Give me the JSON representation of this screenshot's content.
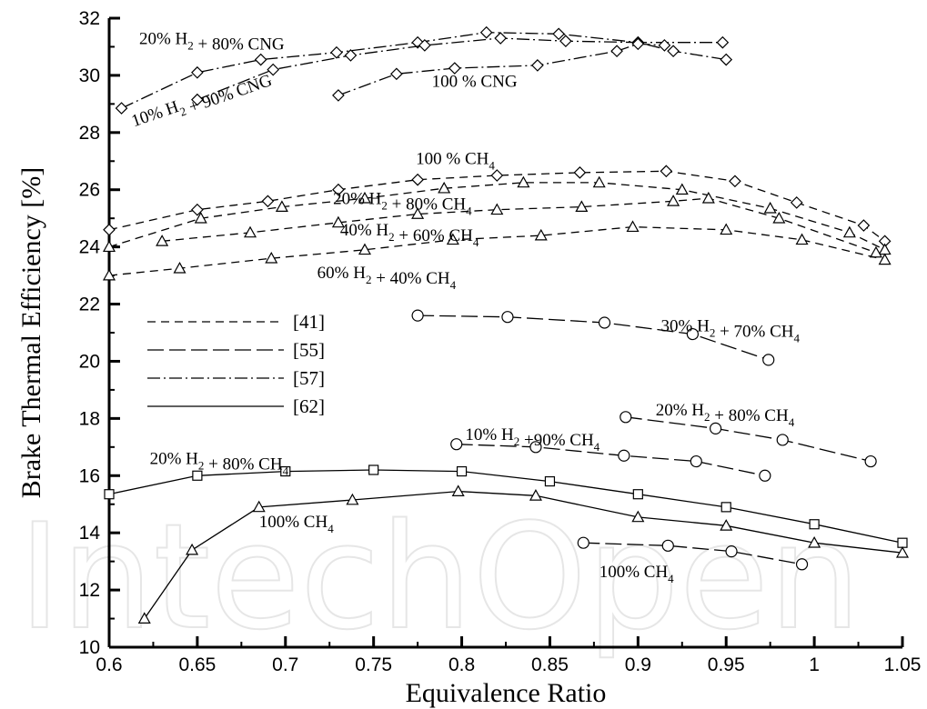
{
  "chart_data": {
    "type": "line",
    "title": "",
    "xlabel": "Equivalence Ratio",
    "ylabel": "Brake Thermal Efficiency [%]",
    "xlim": [
      0.6,
      1.05
    ],
    "ylim": [
      10,
      32
    ],
    "x_ticks": [
      "0.6",
      "0.65",
      "0.7",
      "0.75",
      "0.8",
      "0.85",
      "0.9",
      "0.95",
      "1",
      "1.05"
    ],
    "y_ticks": [
      "10",
      "12",
      "14",
      "16",
      "18",
      "20",
      "22",
      "24",
      "26",
      "28",
      "30",
      "32"
    ],
    "grid": false,
    "watermark": "IntechOpen",
    "legend": {
      "placement": "center-left",
      "entries": [
        {
          "label": "[41]",
          "style": "dash-short"
        },
        {
          "label": "[55]",
          "style": "dash-long"
        },
        {
          "label": "[57]",
          "style": "dash-dot"
        },
        {
          "label": "[62]",
          "style": "solid"
        }
      ]
    },
    "annotations": [
      {
        "base": "20% H",
        "sub1": "2",
        "mid": " + 80% CNG",
        "sub2": "",
        "x": 0.617,
        "y": 31.1
      },
      {
        "base": "100 % CNG",
        "sub1": "",
        "mid": "",
        "sub2": "",
        "x": 0.783,
        "y": 29.6
      },
      {
        "base": "100 % CH",
        "sub1": "",
        "mid": "",
        "sub2": "4",
        "x": 0.774,
        "y": 26.9
      },
      {
        "base": "20% H",
        "sub1": "2",
        "mid": " + 80% CH",
        "sub2": "4",
        "x": 0.727,
        "y": 25.5
      },
      {
        "base": "40% H",
        "sub1": "2",
        "mid": " + 60% CH",
        "sub2": "4",
        "x": 0.731,
        "y": 24.4
      },
      {
        "base": "60% H",
        "sub1": "2",
        "mid": " + 40% CH",
        "sub2": "4",
        "x": 0.718,
        "y": 22.9
      },
      {
        "base": "30% H",
        "sub1": "2",
        "mid": " + 70% CH",
        "sub2": "4",
        "x": 0.913,
        "y": 21.05
      },
      {
        "base": "20% H",
        "sub1": "2",
        "mid": " + 80% CH",
        "sub2": "4",
        "x": 0.91,
        "y": 18.1
      },
      {
        "base": "10% H",
        "sub1": "2",
        "mid": " +90% CH",
        "sub2": "4",
        "x": 0.802,
        "y": 17.25
      },
      {
        "base": "20% H",
        "sub1": "2",
        "mid": " + 80% CH",
        "sub2": "4",
        "x": 0.623,
        "y": 16.4
      },
      {
        "base": "100% CH",
        "sub1": "",
        "mid": "",
        "sub2": "4",
        "x": 0.685,
        "y": 14.2
      },
      {
        "base": "100% CH",
        "sub1": "",
        "mid": "",
        "sub2": "4",
        "x": 0.878,
        "y": 12.45
      }
    ],
    "rotated_annotations": [
      {
        "base": "10% H",
        "sub1": "2",
        "mid": " + 90% CNG",
        "x": 0.614,
        "y": 28.2,
        "angle": -19
      }
    ],
    "series": [
      {
        "ref": "[57]",
        "style": "dash-dot",
        "marker": "diamond",
        "x": [
          0.607,
          0.65,
          0.686,
          0.729,
          0.775,
          0.814,
          0.855,
          0.9,
          0.948
        ],
        "y": [
          28.85,
          30.1,
          30.55,
          30.8,
          31.15,
          31.5,
          31.45,
          31.15,
          31.15
        ]
      },
      {
        "ref": "[57]",
        "style": "dash-dot",
        "marker": "diamond",
        "x": [
          0.65,
          0.693,
          0.737,
          0.779,
          0.822,
          0.859,
          0.9,
          0.92,
          0.95
        ],
        "y": [
          29.15,
          30.2,
          30.7,
          31.05,
          31.3,
          31.2,
          31.15,
          30.85,
          30.55
        ]
      },
      {
        "ref": "[57]",
        "style": "dash-dot",
        "marker": "diamond",
        "x": [
          0.73,
          0.763,
          0.796,
          0.843,
          0.888,
          0.9,
          0.915
        ],
        "y": [
          29.3,
          30.05,
          30.25,
          30.35,
          30.85,
          31.1,
          31.05
        ]
      },
      {
        "ref": "[41]",
        "style": "dash-short",
        "marker": "diamond",
        "x": [
          0.6,
          0.65,
          0.69,
          0.73,
          0.775,
          0.82,
          0.867,
          0.916,
          0.955,
          0.99,
          1.028,
          1.04
        ],
        "y": [
          24.6,
          25.3,
          25.6,
          26.0,
          26.35,
          26.5,
          26.6,
          26.65,
          26.3,
          25.55,
          24.75,
          24.2
        ]
      },
      {
        "ref": "[41]",
        "style": "dash-short",
        "marker": "triangle",
        "x": [
          0.6,
          0.652,
          0.698,
          0.745,
          0.79,
          0.835,
          0.878,
          0.925,
          0.975,
          1.02,
          1.04
        ],
        "y": [
          24.0,
          25.0,
          25.4,
          25.7,
          26.05,
          26.25,
          26.25,
          26.0,
          25.35,
          24.5,
          23.9
        ]
      },
      {
        "ref": "[41]",
        "style": "dash-short",
        "marker": "triangle",
        "x": [
          0.63,
          0.68,
          0.73,
          0.775,
          0.82,
          0.868,
          0.92,
          0.94,
          0.98,
          1.035
        ],
        "y": [
          24.2,
          24.5,
          24.85,
          25.15,
          25.3,
          25.4,
          25.6,
          25.7,
          25.0,
          23.8
        ]
      },
      {
        "ref": "[41]",
        "style": "dash-short",
        "marker": "triangle",
        "x": [
          0.6,
          0.64,
          0.692,
          0.745,
          0.795,
          0.845,
          0.897,
          0.95,
          0.993,
          1.04
        ],
        "y": [
          23.0,
          23.25,
          23.6,
          23.9,
          24.25,
          24.4,
          24.7,
          24.6,
          24.25,
          23.55
        ]
      },
      {
        "ref": "[55]",
        "style": "dash-long",
        "marker": "circle",
        "x": [
          0.775,
          0.826,
          0.881,
          0.931,
          0.974
        ],
        "y": [
          21.6,
          21.55,
          21.35,
          20.95,
          20.05
        ]
      },
      {
        "ref": "[55]",
        "style": "dash-long",
        "marker": "circle",
        "x": [
          0.893,
          0.944,
          0.982,
          1.032
        ],
        "y": [
          18.05,
          17.65,
          17.25,
          16.5
        ]
      },
      {
        "ref": "[55]",
        "style": "dash-long",
        "marker": "circle",
        "x": [
          0.797,
          0.842,
          0.892,
          0.933,
          0.972
        ],
        "y": [
          17.1,
          17.0,
          16.7,
          16.5,
          16.0
        ]
      },
      {
        "ref": "[55]",
        "style": "dash-long",
        "marker": "circle",
        "x": [
          0.869,
          0.917,
          0.953,
          0.993
        ],
        "y": [
          13.65,
          13.55,
          13.35,
          12.9
        ]
      },
      {
        "ref": "[62]",
        "style": "solid",
        "marker": "square",
        "x": [
          0.6,
          0.65,
          0.7,
          0.75,
          0.8,
          0.85,
          0.9,
          0.95,
          1.0,
          1.05
        ],
        "y": [
          15.35,
          16.0,
          16.15,
          16.2,
          16.15,
          15.8,
          15.35,
          14.9,
          14.3,
          13.65
        ]
      },
      {
        "ref": "[62]",
        "style": "solid",
        "marker": "triangle",
        "x": [
          0.62,
          0.647,
          0.685,
          0.738,
          0.798,
          0.842,
          0.9,
          0.95,
          1.0,
          1.05
        ],
        "y": [
          11.0,
          13.4,
          14.9,
          15.15,
          15.45,
          15.3,
          14.55,
          14.25,
          13.65,
          13.3
        ]
      }
    ]
  }
}
